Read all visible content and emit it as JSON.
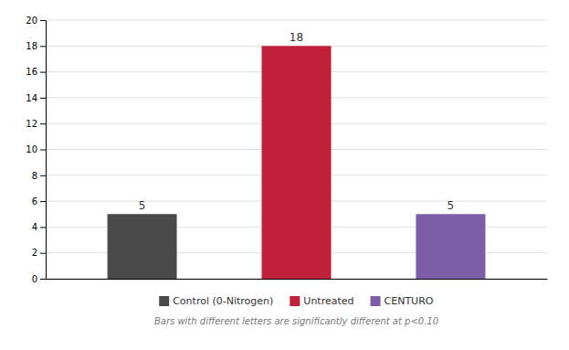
{
  "chart_data": {
    "type": "bar",
    "categories": [
      "Control (0-Nitrogen)",
      "Untreated",
      "CENTURO"
    ],
    "values": [
      5,
      18,
      5
    ],
    "colors": [
      "#4a4a4a",
      "#c0203a",
      "#7b5ea7"
    ],
    "ylim": [
      0,
      20
    ],
    "yticks": [
      0,
      2,
      4,
      6,
      8,
      10,
      12,
      14,
      16,
      18,
      20
    ],
    "grid": true,
    "data_labels": true,
    "tick_labels": "y",
    "legend": "bottom",
    "annotations": [
      "Bars with different letters are significantly different at p<0.10"
    ]
  }
}
